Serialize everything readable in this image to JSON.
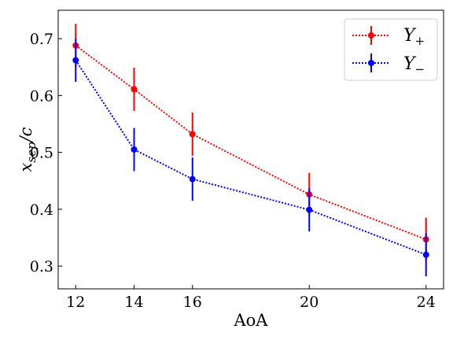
{
  "chart_data": {
    "type": "line",
    "title": "",
    "xlabel": "AoA",
    "ylabel": "x_sep/c",
    "ylabel_main": "x",
    "ylabel_sub": "sep",
    "ylabel_rest": "/c",
    "x": [
      12,
      14,
      16,
      20,
      24
    ],
    "xticks": [
      "12",
      "14",
      "16",
      "20",
      "24"
    ],
    "yticks": [
      "0.3",
      "0.4",
      "0.5",
      "0.6",
      "0.7"
    ],
    "xlim": [
      11.4,
      24.6
    ],
    "ylim": [
      0.26,
      0.75
    ],
    "grid": false,
    "legend_position": "top-right",
    "series": [
      {
        "name": "Y+",
        "name_main": "Y",
        "name_sub": "+",
        "color": "#ff0000",
        "values": [
          0.688,
          0.611,
          0.532,
          0.426,
          0.347
        ],
        "errors": [
          0.038,
          0.038,
          0.038,
          0.038,
          0.038
        ]
      },
      {
        "name": "Y−",
        "name_main": "Y",
        "name_sub": "−",
        "color": "#0000ff",
        "values": [
          0.662,
          0.505,
          0.453,
          0.399,
          0.32
        ],
        "errors": [
          0.038,
          0.038,
          0.038,
          0.038,
          0.038
        ]
      }
    ]
  }
}
